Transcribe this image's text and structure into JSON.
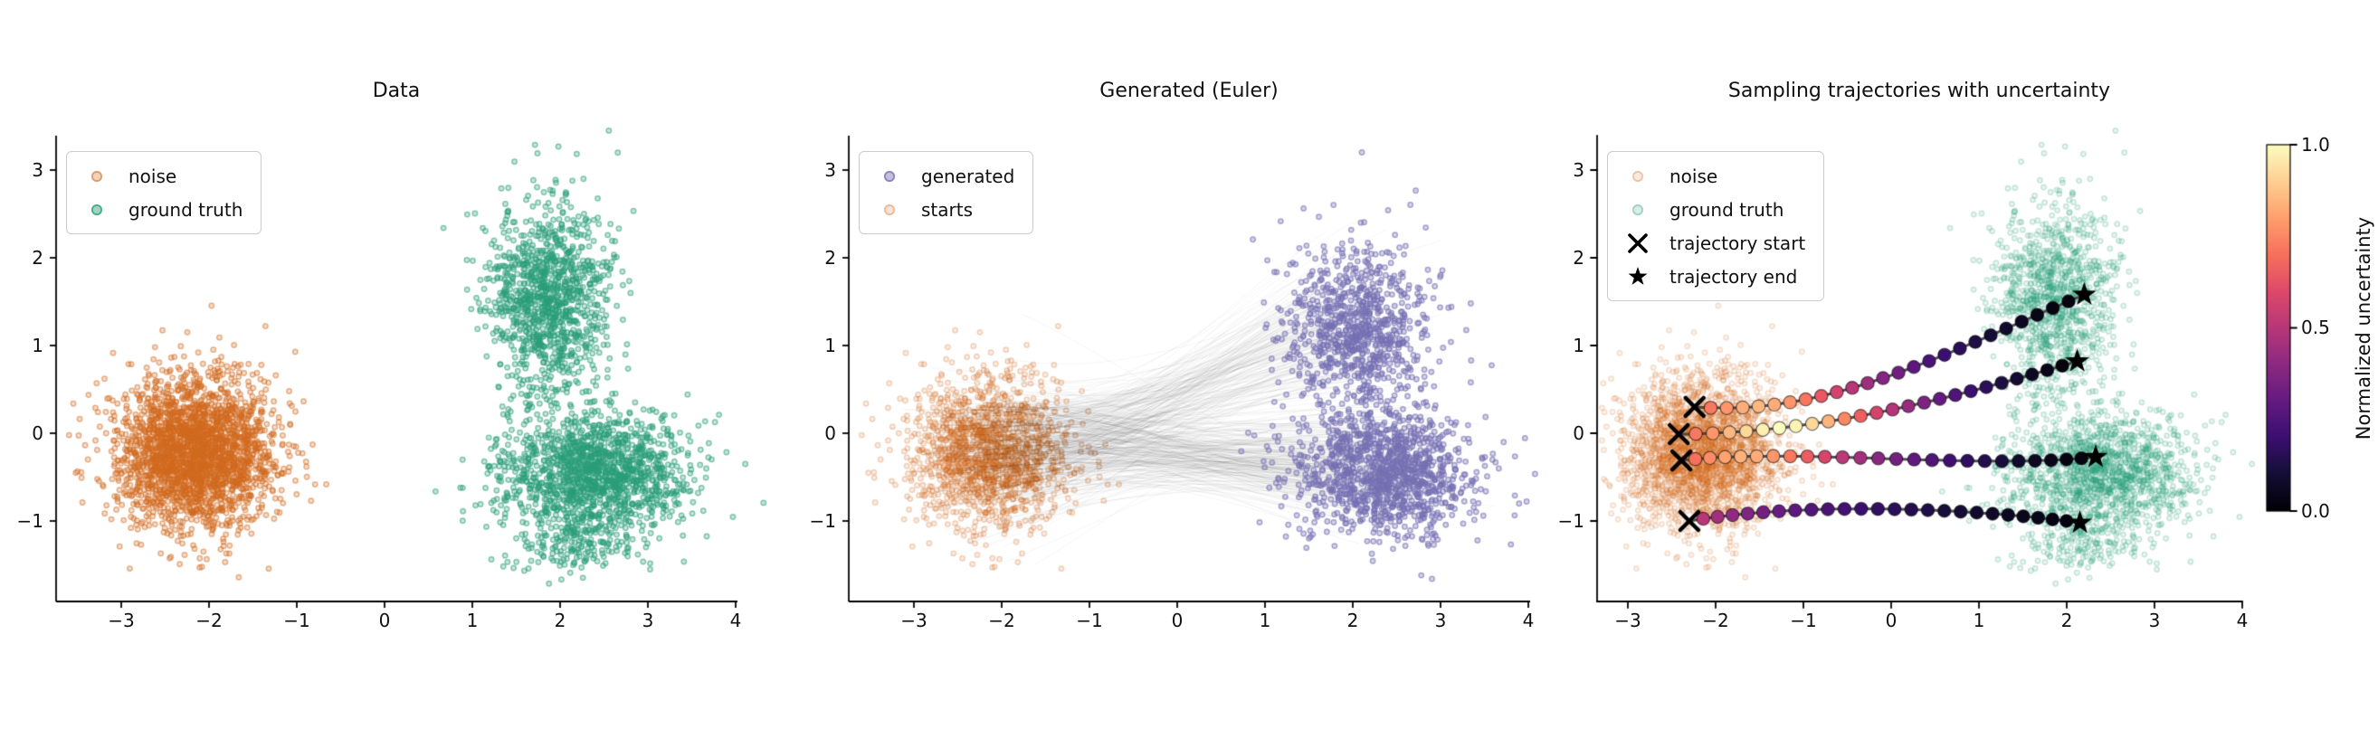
{
  "chart_data": {
    "type": "scatter",
    "figure_bg": "#ffffff",
    "colormap": "magma",
    "axes": {
      "x_range": [
        -3.74,
        4.02
      ],
      "y_range": [
        -1.92,
        3.39
      ],
      "x_ticks": [
        {
          "value": -3,
          "label": "−3"
        },
        {
          "value": -2,
          "label": "−2"
        },
        {
          "value": -1,
          "label": "−1"
        },
        {
          "value": 0,
          "label": "0"
        },
        {
          "value": 1,
          "label": "1"
        },
        {
          "value": 2,
          "label": "2"
        },
        {
          "value": 3,
          "label": "3"
        },
        {
          "value": 4,
          "label": "4"
        }
      ],
      "y_ticks": [
        {
          "value": -1,
          "label": "−1"
        },
        {
          "value": 0,
          "label": "0"
        },
        {
          "value": 1,
          "label": "1"
        },
        {
          "value": 2,
          "label": "2"
        },
        {
          "value": 3,
          "label": "3"
        }
      ],
      "grid": false
    },
    "colors": {
      "noise": "#d2691e",
      "ground_truth": "#2a9d78",
      "generated": "#7570b3",
      "trajectory_line": "#3d3d3d",
      "marker_black": "#000000"
    },
    "panels": [
      {
        "id": "data",
        "title": "Data",
        "legend": [
          {
            "label": "noise",
            "marker": "dot",
            "color": "#d2691e",
            "fill_alpha": 0.3,
            "edge_alpha": 0.6
          },
          {
            "label": "ground truth",
            "marker": "dot",
            "color": "#2a9d78",
            "fill_alpha": 0.45,
            "edge_alpha": 0.8
          }
        ],
        "clusters": [
          {
            "name": "noise",
            "color": "#d2691e",
            "seed": 7,
            "n": 2600,
            "cx": -2.15,
            "cy": -0.2,
            "sx": 0.44,
            "sy": 0.42,
            "fill_alpha": 0.22,
            "edge_alpha": 0.5,
            "layer": "under"
          },
          {
            "name": "ground-truth-upper",
            "color": "#2a9d78",
            "seed": 11,
            "n": 1150,
            "cx": 1.85,
            "cy": 1.55,
            "sx": 0.34,
            "sy": 0.55,
            "fill_alpha": 0.26,
            "edge_alpha": 0.55,
            "layer": "under"
          },
          {
            "name": "ground-truth-lower",
            "color": "#2a9d78",
            "seed": 12,
            "n": 1500,
            "cx": 2.42,
            "cy": -0.45,
            "sx": 0.5,
            "sy": 0.34,
            "fill_alpha": 0.26,
            "edge_alpha": 0.55,
            "layer": "under"
          },
          {
            "name": "ground-truth-tail",
            "color": "#2a9d78",
            "seed": 13,
            "n": 150,
            "cx": 2.05,
            "cy": -1.27,
            "sx": 0.38,
            "sy": 0.16,
            "fill_alpha": 0.26,
            "edge_alpha": 0.55,
            "layer": "under"
          }
        ]
      },
      {
        "id": "generated",
        "title": "Generated (Euler)",
        "legend": [
          {
            "label": "generated",
            "marker": "dot",
            "color": "#7570b3",
            "fill_alpha": 0.45,
            "edge_alpha": 0.8
          },
          {
            "label": "starts",
            "marker": "dot",
            "color": "#d2691e",
            "fill_alpha": 0.18,
            "edge_alpha": 0.4
          }
        ],
        "clusters": [
          {
            "name": "starts",
            "color": "#d2691e",
            "seed": 7,
            "n": 1600,
            "cx": -2.15,
            "cy": -0.2,
            "sx": 0.44,
            "sy": 0.42,
            "fill_alpha": 0.12,
            "edge_alpha": 0.28,
            "layer": "under"
          },
          {
            "name": "generated-upper",
            "color": "#7570b3",
            "seed": 21,
            "n": 900,
            "cx": 2.05,
            "cy": 1.2,
            "sx": 0.42,
            "sy": 0.48,
            "fill_alpha": 0.3,
            "edge_alpha": 0.6,
            "layer": "over"
          },
          {
            "name": "generated-lower",
            "color": "#7570b3",
            "seed": 22,
            "n": 1250,
            "cx": 2.35,
            "cy": -0.45,
            "sx": 0.52,
            "sy": 0.35,
            "fill_alpha": 0.3,
            "edge_alpha": 0.6,
            "layer": "over"
          }
        ],
        "flow_lines": {
          "n": 400,
          "seed": 31,
          "color": "rgba(0,0,0,0.05)",
          "width": 0.9,
          "start": {
            "cx": -2.15,
            "cy": -0.2,
            "sx": 0.42,
            "sy": 0.4
          },
          "ends": [
            {
              "p": 0.42,
              "cx": 2.05,
              "cy": 1.2,
              "sx": 0.4,
              "sy": 0.45
            },
            {
              "p": 0.58,
              "cx": 2.35,
              "cy": -0.45,
              "sx": 0.5,
              "sy": 0.33
            }
          ]
        }
      },
      {
        "id": "trajectories",
        "title": "Sampling trajectories with uncertainty",
        "legend": [
          {
            "label": "noise",
            "marker": "dot",
            "color": "#d2691e",
            "fill_alpha": 0.15,
            "edge_alpha": 0.35
          },
          {
            "label": "ground truth",
            "marker": "dot",
            "color": "#2a9d78",
            "fill_alpha": 0.18,
            "edge_alpha": 0.4
          },
          {
            "label": "trajectory start",
            "marker": "cross",
            "color": "#000000"
          },
          {
            "label": "trajectory end",
            "marker": "star",
            "color": "#000000"
          }
        ],
        "clusters": [
          {
            "name": "noise",
            "color": "#d2691e",
            "seed": 7,
            "n": 2600,
            "cx": -2.15,
            "cy": -0.2,
            "sx": 0.44,
            "sy": 0.42,
            "fill_alpha": 0.08,
            "edge_alpha": 0.2,
            "layer": "under"
          },
          {
            "name": "ground-truth-upper",
            "color": "#2a9d78",
            "seed": 11,
            "n": 1150,
            "cx": 1.85,
            "cy": 1.55,
            "sx": 0.34,
            "sy": 0.55,
            "fill_alpha": 0.1,
            "edge_alpha": 0.24,
            "layer": "under"
          },
          {
            "name": "ground-truth-lower",
            "color": "#2a9d78",
            "seed": 12,
            "n": 1500,
            "cx": 2.42,
            "cy": -0.45,
            "sx": 0.5,
            "sy": 0.34,
            "fill_alpha": 0.1,
            "edge_alpha": 0.24,
            "layer": "under"
          },
          {
            "name": "ground-truth-tail",
            "color": "#2a9d78",
            "seed": 13,
            "n": 150,
            "cx": 2.05,
            "cy": -1.27,
            "sx": 0.38,
            "sy": 0.16,
            "fill_alpha": 0.1,
            "edge_alpha": 0.24,
            "layer": "under"
          }
        ],
        "trajectories": [
          {
            "start": [
              -2.24,
              0.3
            ],
            "c1": [
              -0.7,
              0.18
            ],
            "c2": [
              0.7,
              0.95
            ],
            "end": [
              2.2,
              1.58
            ],
            "uncertainty": [
              0.72,
              0.78,
              0.83,
              0.85,
              0.83,
              0.78,
              0.71,
              0.64,
              0.57,
              0.5,
              0.44,
              0.38,
              0.33,
              0.28,
              0.24,
              0.2,
              0.16,
              0.13,
              0.1,
              0.08,
              0.06,
              0.04,
              0.03,
              0.02
            ]
          },
          {
            "start": [
              -2.42,
              -0.01
            ],
            "c1": [
              -0.8,
              0.0
            ],
            "c2": [
              0.7,
              0.4
            ],
            "end": [
              2.12,
              0.82
            ],
            "uncertainty": [
              0.72,
              0.78,
              0.85,
              0.92,
              0.97,
              1.0,
              0.98,
              0.92,
              0.84,
              0.75,
              0.66,
              0.57,
              0.49,
              0.42,
              0.36,
              0.3,
              0.25,
              0.2,
              0.16,
              0.12,
              0.09,
              0.06,
              0.04,
              0.02
            ]
          },
          {
            "start": [
              -2.39,
              -0.31
            ],
            "c1": [
              -1.1,
              -0.16
            ],
            "c2": [
              1.0,
              -0.42
            ],
            "end": [
              2.33,
              -0.27
            ],
            "uncertainty": [
              0.7,
              0.76,
              0.81,
              0.84,
              0.83,
              0.78,
              0.72,
              0.65,
              0.58,
              0.51,
              0.45,
              0.39,
              0.34,
              0.29,
              0.25,
              0.21,
              0.17,
              0.14,
              0.11,
              0.08,
              0.06,
              0.04,
              0.03,
              0.02
            ]
          },
          {
            "start": [
              -2.3,
              -1.0
            ],
            "c1": [
              -1.0,
              -0.78
            ],
            "c2": [
              0.9,
              -0.85
            ],
            "end": [
              2.15,
              -1.02
            ],
            "uncertainty": [
              0.5,
              0.45,
              0.41,
              0.37,
              0.34,
              0.31,
              0.28,
              0.26,
              0.24,
              0.22,
              0.2,
              0.18,
              0.16,
              0.14,
              0.13,
              0.11,
              0.1,
              0.08,
              0.07,
              0.06,
              0.05,
              0.04,
              0.03,
              0.02
            ]
          }
        ]
      }
    ],
    "colorbar": {
      "label": "Normalized uncertainty",
      "orientation": "vertical",
      "ticks": [
        {
          "value": 1.0,
          "label": "1.0"
        },
        {
          "value": 0.5,
          "label": "0.5"
        },
        {
          "value": 0.0,
          "label": "0.0"
        }
      ]
    }
  }
}
